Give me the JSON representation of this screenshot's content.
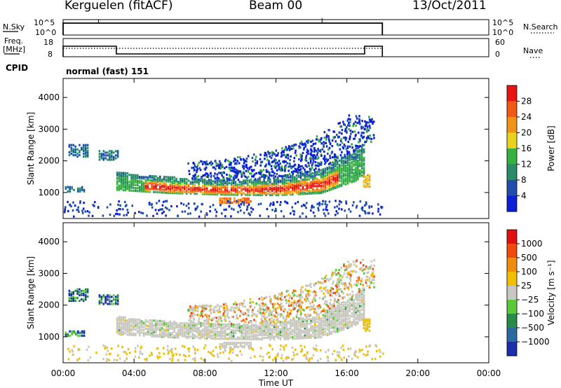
{
  "header": {
    "station": "Kerguelen (fitACF)",
    "beam": "Beam 00",
    "date": "13/Oct/2011"
  },
  "top_panels": {
    "nsky_label": "N.Sky",
    "nsky_ticks": [
      "10^5",
      "10^0"
    ],
    "nsearch_label": "N.Search",
    "nsearch_ticks": [
      "10^5",
      "10^0"
    ],
    "freq_label_1": "Freq.",
    "freq_label_2": "[MHz]",
    "freq_ticks": [
      "18",
      "8"
    ],
    "nave_label": "Nave",
    "nave_ticks": [
      "60",
      "0"
    ],
    "cpid_label": "CPID",
    "cpid_value": "normal (fast) 151"
  },
  "chart_data": [
    {
      "type": "heatmap",
      "name": "power",
      "ylabel": "Slant Range [km]",
      "ylim": [
        180,
        4600
      ],
      "yticks": [
        "4000",
        "3000",
        "2000",
        "1000"
      ],
      "xlim_hours": [
        0,
        24
      ],
      "colorbar": {
        "label": "Power [dB]",
        "ticks": [
          "28",
          "24",
          "20",
          "16",
          "12",
          "8",
          "4"
        ],
        "colors": [
          "#0a1fd6",
          "#1f4fa8",
          "#2a8a6a",
          "#36b040",
          "#e8d21e",
          "#f09418",
          "#f05a14",
          "#e81414"
        ]
      },
      "echo_band": {
        "description_hint": "main scatter band",
        "lower_edge_km": [
          [
            3.0,
            1050
          ],
          [
            6.0,
            950
          ],
          [
            9.0,
            900
          ],
          [
            12.0,
            880
          ],
          [
            14.5,
            950
          ],
          [
            16.5,
            1350
          ],
          [
            17.0,
            1600
          ]
        ],
        "upper_edge_km": [
          [
            3.0,
            1600
          ],
          [
            6.0,
            1450
          ],
          [
            9.0,
            1350
          ],
          [
            12.0,
            1400
          ],
          [
            14.5,
            1700
          ],
          [
            16.5,
            2300
          ],
          [
            17.0,
            2500
          ]
        ]
      }
    },
    {
      "type": "heatmap",
      "name": "velocity",
      "ylabel": "Slant Range [km]",
      "ylim": [
        180,
        4600
      ],
      "yticks": [
        "4000",
        "3000",
        "2000",
        "1000"
      ],
      "xlim_hours": [
        0,
        24
      ],
      "xlabel": "Time UT",
      "xticks": [
        "00:00",
        "04:00",
        "08:00",
        "12:00",
        "16:00",
        "20:00",
        "00:00"
      ],
      "colorbar": {
        "label": "Velocity [m s⁻¹]",
        "ticks": [
          "1000",
          "500",
          "100",
          "25",
          "−25",
          "−100",
          "−500",
          "−1000"
        ],
        "colors": [
          "#1c2fa8",
          "#2a6aa0",
          "#2a8a4a",
          "#5ac83a",
          "#c8c8c0",
          "#f0c000",
          "#f08c10",
          "#f04c10",
          "#e01010"
        ]
      }
    }
  ]
}
